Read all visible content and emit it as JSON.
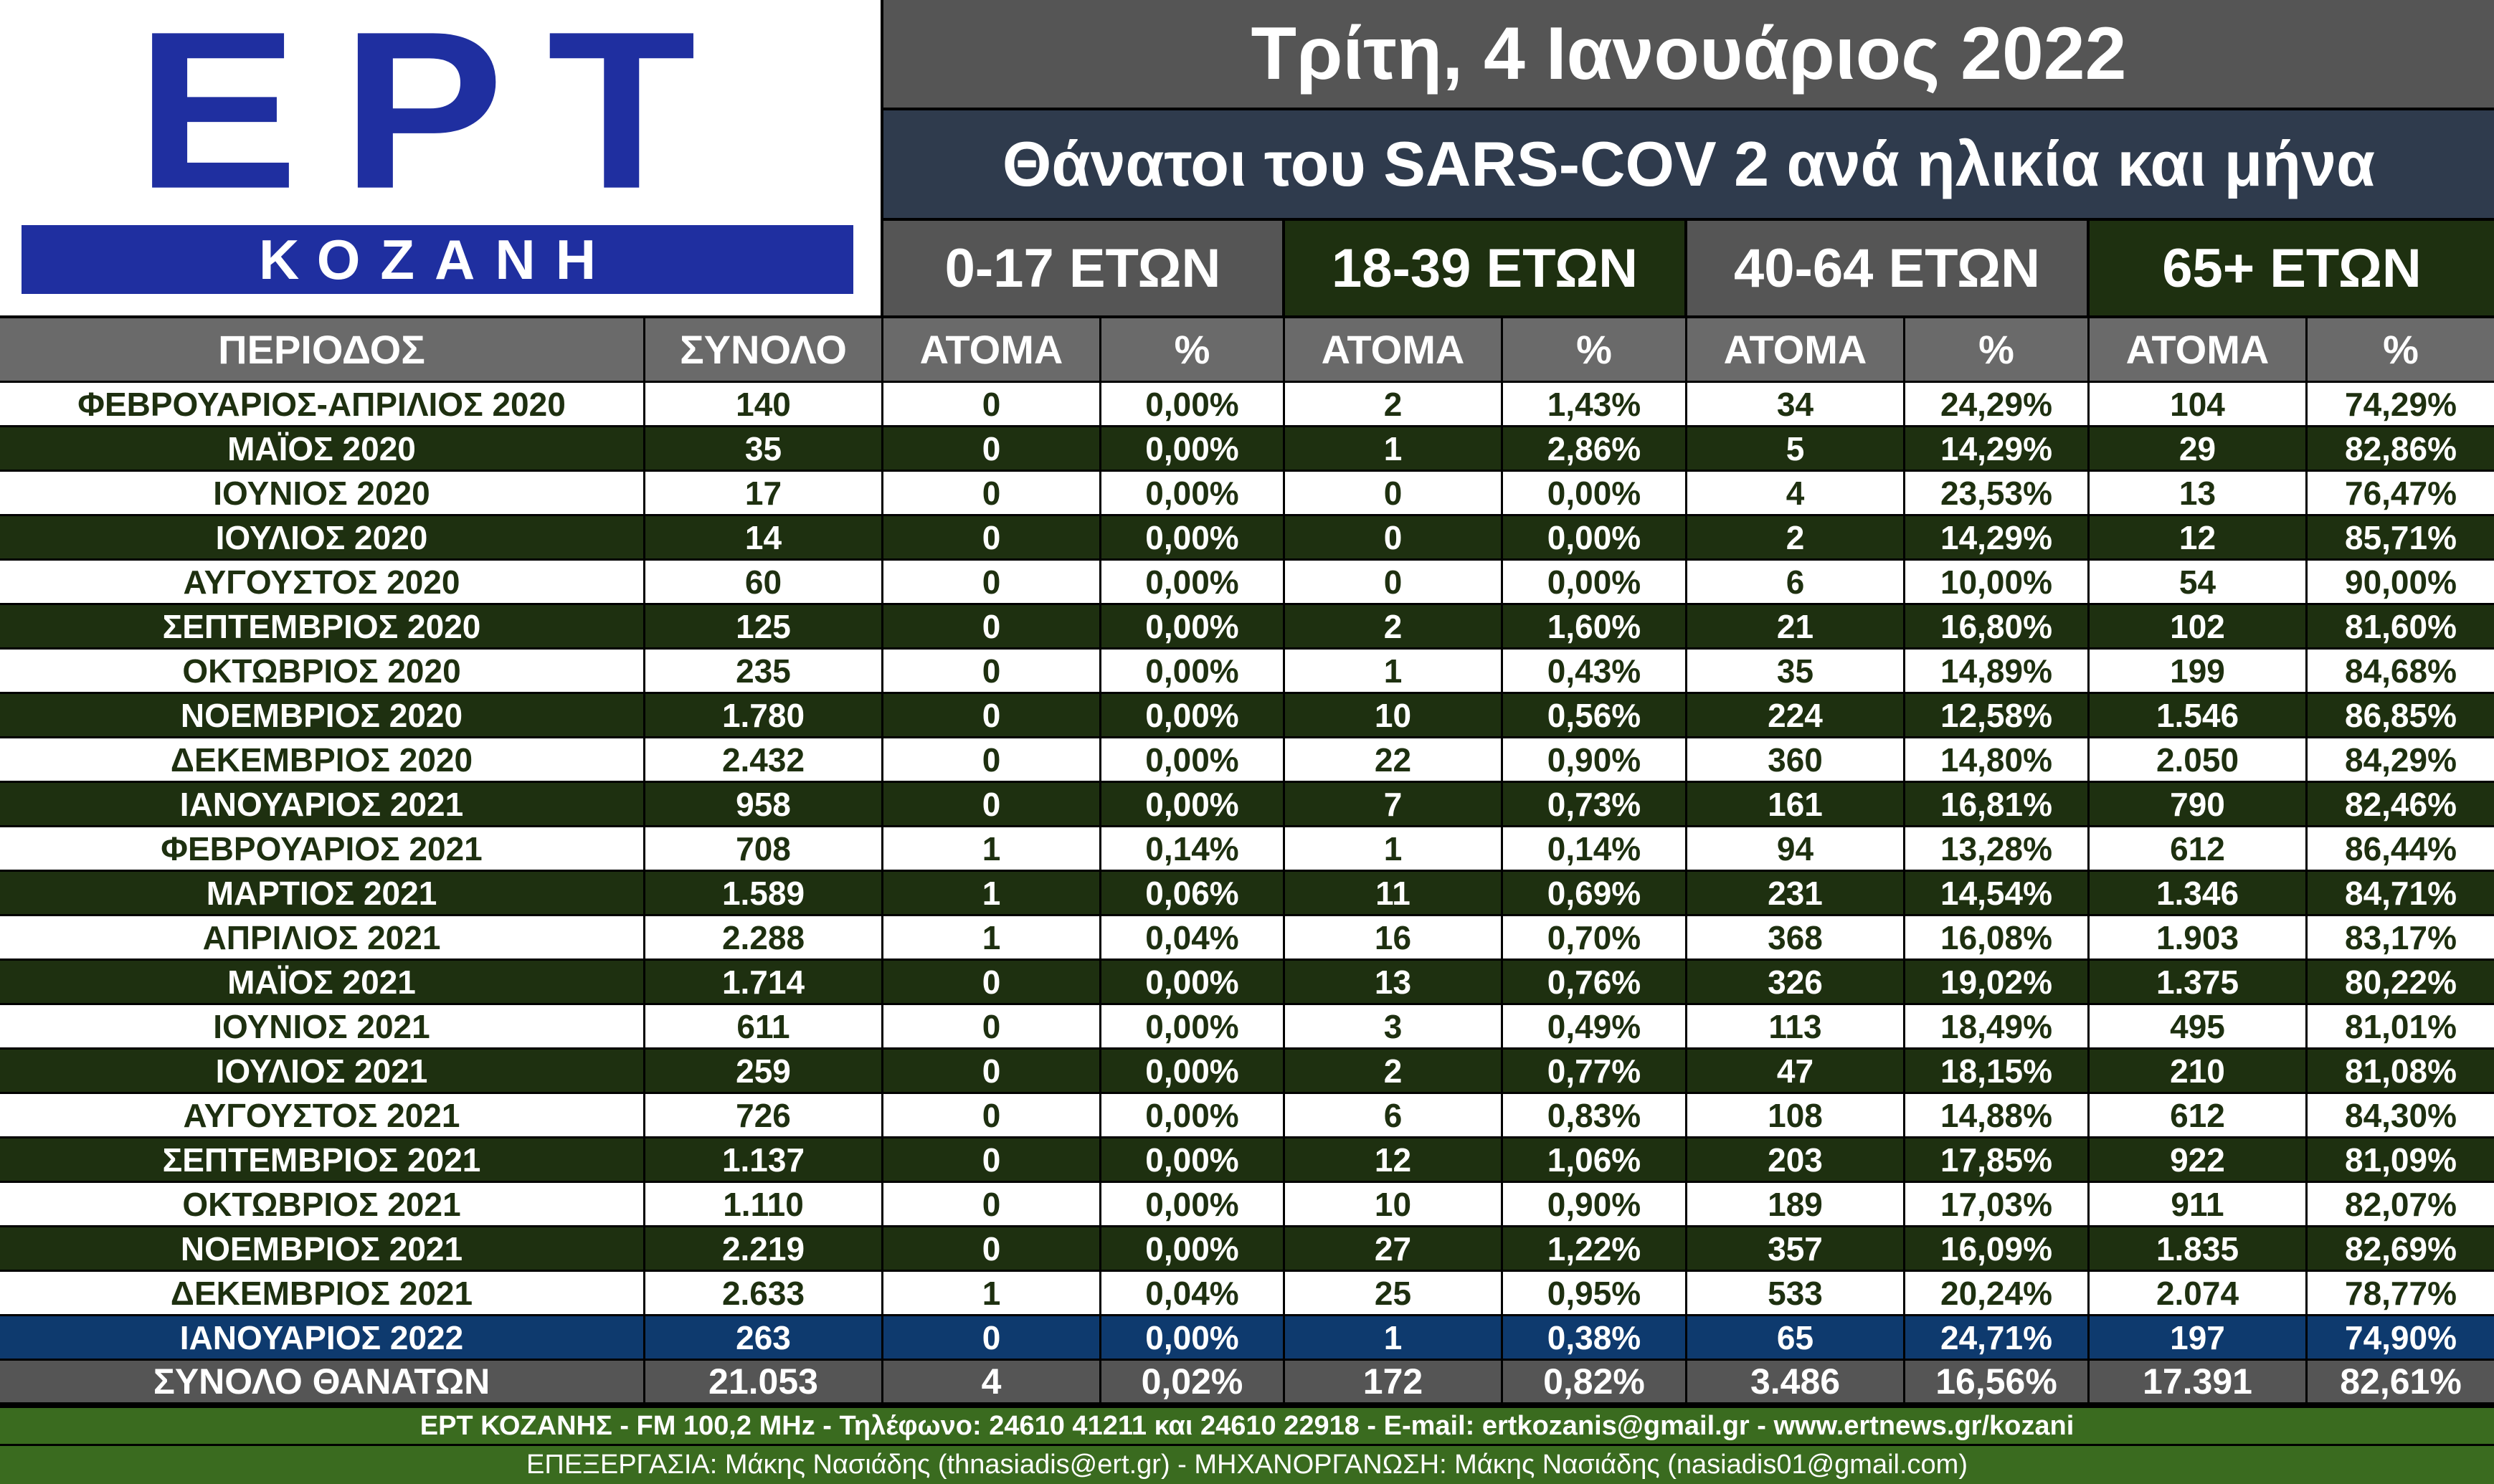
{
  "logo": {
    "main": "ΕΡΤ",
    "sub": "ΚΟΖΑΝΗ"
  },
  "header": {
    "date": "Τρίτη, 4 Ιανουάριος 2022",
    "title": "Θάνατοι του SARS-COV 2 ανά ηλικία και μήνα",
    "groups": [
      "0-17 ΕΤΩΝ",
      "18-39 ΕΤΩΝ",
      "40-64 ΕΤΩΝ",
      "65+  ΕΤΩΝ"
    ]
  },
  "colors": {
    "dark_green": "#1e3010",
    "grey": "#555555",
    "navy": "#2f3b4d",
    "blue_row": "#0e3a6e",
    "footer_green": "#3a6b1f",
    "logo_blue": "#1f2fa0"
  },
  "chart_data": {
    "type": "table",
    "title": "Θάνατοι του SARS-COV 2 ανά ηλικία και μήνα",
    "columns": [
      "ΠΕΡΙΟΔΟΣ",
      "ΣΥΝΟΛΟ",
      "ΑΤΟΜΑ",
      "%",
      "ΑΤΟΜΑ",
      "%",
      "ΑΤΟΜΑ",
      "%",
      "ΑΤΟΜΑ",
      "%"
    ],
    "rows": [
      [
        "ΦΕΒΡΟΥΑΡΙΟΣ-ΑΠΡΙΛΙΟΣ 2020",
        "140",
        "0",
        "0,00%",
        "2",
        "1,43%",
        "34",
        "24,29%",
        "104",
        "74,29%"
      ],
      [
        "ΜΑΪΟΣ 2020",
        "35",
        "0",
        "0,00%",
        "1",
        "2,86%",
        "5",
        "14,29%",
        "29",
        "82,86%"
      ],
      [
        "ΙΟΥΝΙΟΣ 2020",
        "17",
        "0",
        "0,00%",
        "0",
        "0,00%",
        "4",
        "23,53%",
        "13",
        "76,47%"
      ],
      [
        "ΙΟΥΛΙΟΣ 2020",
        "14",
        "0",
        "0,00%",
        "0",
        "0,00%",
        "2",
        "14,29%",
        "12",
        "85,71%"
      ],
      [
        "ΑΥΓΟΥΣΤΟΣ 2020",
        "60",
        "0",
        "0,00%",
        "0",
        "0,00%",
        "6",
        "10,00%",
        "54",
        "90,00%"
      ],
      [
        "ΣΕΠΤΕΜΒΡΙΟΣ 2020",
        "125",
        "0",
        "0,00%",
        "2",
        "1,60%",
        "21",
        "16,80%",
        "102",
        "81,60%"
      ],
      [
        "ΟΚΤΩΒΡΙΟΣ 2020",
        "235",
        "0",
        "0,00%",
        "1",
        "0,43%",
        "35",
        "14,89%",
        "199",
        "84,68%"
      ],
      [
        "ΝΟΕΜΒΡΙΟΣ 2020",
        "1.780",
        "0",
        "0,00%",
        "10",
        "0,56%",
        "224",
        "12,58%",
        "1.546",
        "86,85%"
      ],
      [
        "ΔΕΚΕΜΒΡΙΟΣ 2020",
        "2.432",
        "0",
        "0,00%",
        "22",
        "0,90%",
        "360",
        "14,80%",
        "2.050",
        "84,29%"
      ],
      [
        "ΙΑΝΟΥΑΡΙΟΣ 2021",
        "958",
        "0",
        "0,00%",
        "7",
        "0,73%",
        "161",
        "16,81%",
        "790",
        "82,46%"
      ],
      [
        "ΦΕΒΡΟΥΑΡΙΟΣ 2021",
        "708",
        "1",
        "0,14%",
        "1",
        "0,14%",
        "94",
        "13,28%",
        "612",
        "86,44%"
      ],
      [
        "ΜΑΡΤΙΟΣ 2021",
        "1.589",
        "1",
        "0,06%",
        "11",
        "0,69%",
        "231",
        "14,54%",
        "1.346",
        "84,71%"
      ],
      [
        "ΑΠΡΙΛΙΟΣ 2021",
        "2.288",
        "1",
        "0,04%",
        "16",
        "0,70%",
        "368",
        "16,08%",
        "1.903",
        "83,17%"
      ],
      [
        "ΜΑΪΟΣ 2021",
        "1.714",
        "0",
        "0,00%",
        "13",
        "0,76%",
        "326",
        "19,02%",
        "1.375",
        "80,22%"
      ],
      [
        "ΙΟΥΝΙΟΣ 2021",
        "611",
        "0",
        "0,00%",
        "3",
        "0,49%",
        "113",
        "18,49%",
        "495",
        "81,01%"
      ],
      [
        "ΙΟΥΛΙΟΣ 2021",
        "259",
        "0",
        "0,00%",
        "2",
        "0,77%",
        "47",
        "18,15%",
        "210",
        "81,08%"
      ],
      [
        "ΑΥΓΟΥΣΤΟΣ 2021",
        "726",
        "0",
        "0,00%",
        "6",
        "0,83%",
        "108",
        "14,88%",
        "612",
        "84,30%"
      ],
      [
        "ΣΕΠΤΕΜΒΡΙΟΣ 2021",
        "1.137",
        "0",
        "0,00%",
        "12",
        "1,06%",
        "203",
        "17,85%",
        "922",
        "81,09%"
      ],
      [
        "ΟΚΤΩΒΡΙΟΣ 2021",
        "1.110",
        "0",
        "0,00%",
        "10",
        "0,90%",
        "189",
        "17,03%",
        "911",
        "82,07%"
      ],
      [
        "ΝΟΕΜΒΡΙΟΣ 2021",
        "2.219",
        "0",
        "0,00%",
        "27",
        "1,22%",
        "357",
        "16,09%",
        "1.835",
        "82,69%"
      ],
      [
        "ΔΕΚΕΜΒΡΙΟΣ 2021",
        "2.633",
        "1",
        "0,04%",
        "25",
        "0,95%",
        "533",
        "20,24%",
        "2.074",
        "78,77%"
      ],
      [
        "ΙΑΝΟΥΑΡΙΟΣ 2022",
        "263",
        "0",
        "0,00%",
        "1",
        "0,38%",
        "65",
        "24,71%",
        "197",
        "74,90%"
      ]
    ],
    "total": [
      "ΣΥΝΟΛΟ ΘΑΝΑΤΩΝ",
      "21.053",
      "4",
      "0,02%",
      "172",
      "0,82%",
      "3.486",
      "16,56%",
      "17.391",
      "82,61%"
    ]
  },
  "footer": {
    "line1": "ΕΡΤ ΚΟΖΑΝΗΣ - FM 100,2 MHz - Τηλέφωνο:  24610 41211 και 24610 22918 - E-mail: ertkozanis@gmail.gr - www.ertnews.gr/kozani",
    "line2": "ΕΠΕΞΕΡΓΑΣΙΑ: Μάκης Νασιάδης (thnasiadis@ert.gr) - ΜΗΧΑΝΟΡΓΑΝΩΣΗ: Μάκης Νασιάδης (nasiadis01@gmail.com)"
  }
}
